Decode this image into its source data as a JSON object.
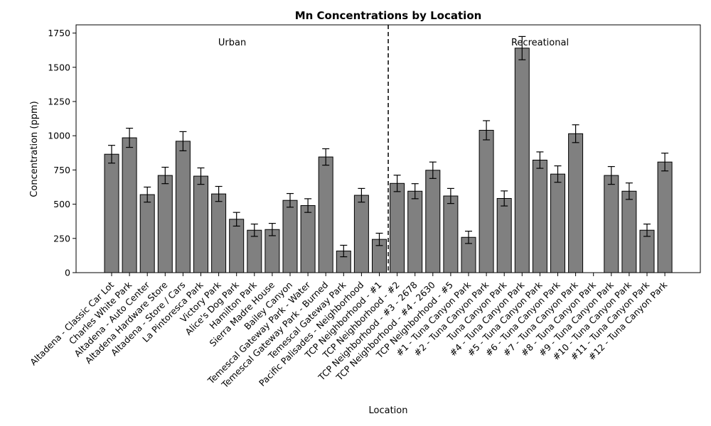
{
  "chart_data": {
    "type": "bar",
    "title": "Mn Concentrations by Location",
    "xlabel": "Location",
    "ylabel": "Concentration (ppm)",
    "ylim": [
      0,
      1810
    ],
    "yticks": [
      0,
      250,
      500,
      750,
      1000,
      1250,
      1500,
      1750
    ],
    "grid": false,
    "bar_color": "#808080",
    "bar_edge_color": "#000000",
    "regions": [
      {
        "label": "Urban"
      },
      {
        "label": "Recreational"
      }
    ],
    "divider_after_index": 15,
    "categories": [
      "Altadena - Classic Car Lot",
      "Charles White Park",
      "Altadena - Auto Center",
      "Altadena Hardware Store",
      "Altadena - Store / Cars",
      "La Pintoresca Park",
      "Victory Park",
      "Alice's Dog Park",
      "Hamilton Park",
      "Sierra Madre House",
      "Bailey Canyon",
      "Temescal Gateway Park - Water",
      "Temescal Gateway Park - Burned",
      "Temescal Gateway Park",
      "Pacific Palisades - Neighborhood",
      "TCP Neighborhood - #1",
      "TCP Neighborhood - #2",
      "TCP Neighborhood - #3 - 2678",
      "TCP Neighborhood - #4 - 2630",
      "TCP Neighborhood - #5",
      "#1 - Tuna Canyon Park",
      "#2 - Tuna Canyon Park",
      "Tuna Canyon Park",
      "#4 - Tuna Canyon Park",
      "#5 - Tuna Canyon Park",
      "#6 - Tuna Canyon Park",
      "#7 - Tuna Canyon Park",
      "#8 - Tuna Canyon Park",
      "#9 - Tuna Canyon Park",
      "#10 - Tuna Canyon Park",
      "#11 - Tuna Canyon Park",
      "#12 - Tuna Canyon Park"
    ],
    "values": [
      865,
      985,
      570,
      710,
      960,
      705,
      575,
      390,
      310,
      315,
      528,
      490,
      845,
      158,
      565,
      243,
      652,
      595,
      748,
      560,
      258,
      1040,
      542,
      1640,
      822,
      720,
      1015,
      0,
      710,
      595,
      310,
      808
    ],
    "errors": [
      65,
      70,
      55,
      60,
      70,
      60,
      55,
      50,
      45,
      45,
      50,
      50,
      60,
      42,
      50,
      45,
      60,
      55,
      60,
      55,
      45,
      70,
      55,
      85,
      60,
      60,
      65,
      0,
      65,
      60,
      45,
      65
    ]
  }
}
